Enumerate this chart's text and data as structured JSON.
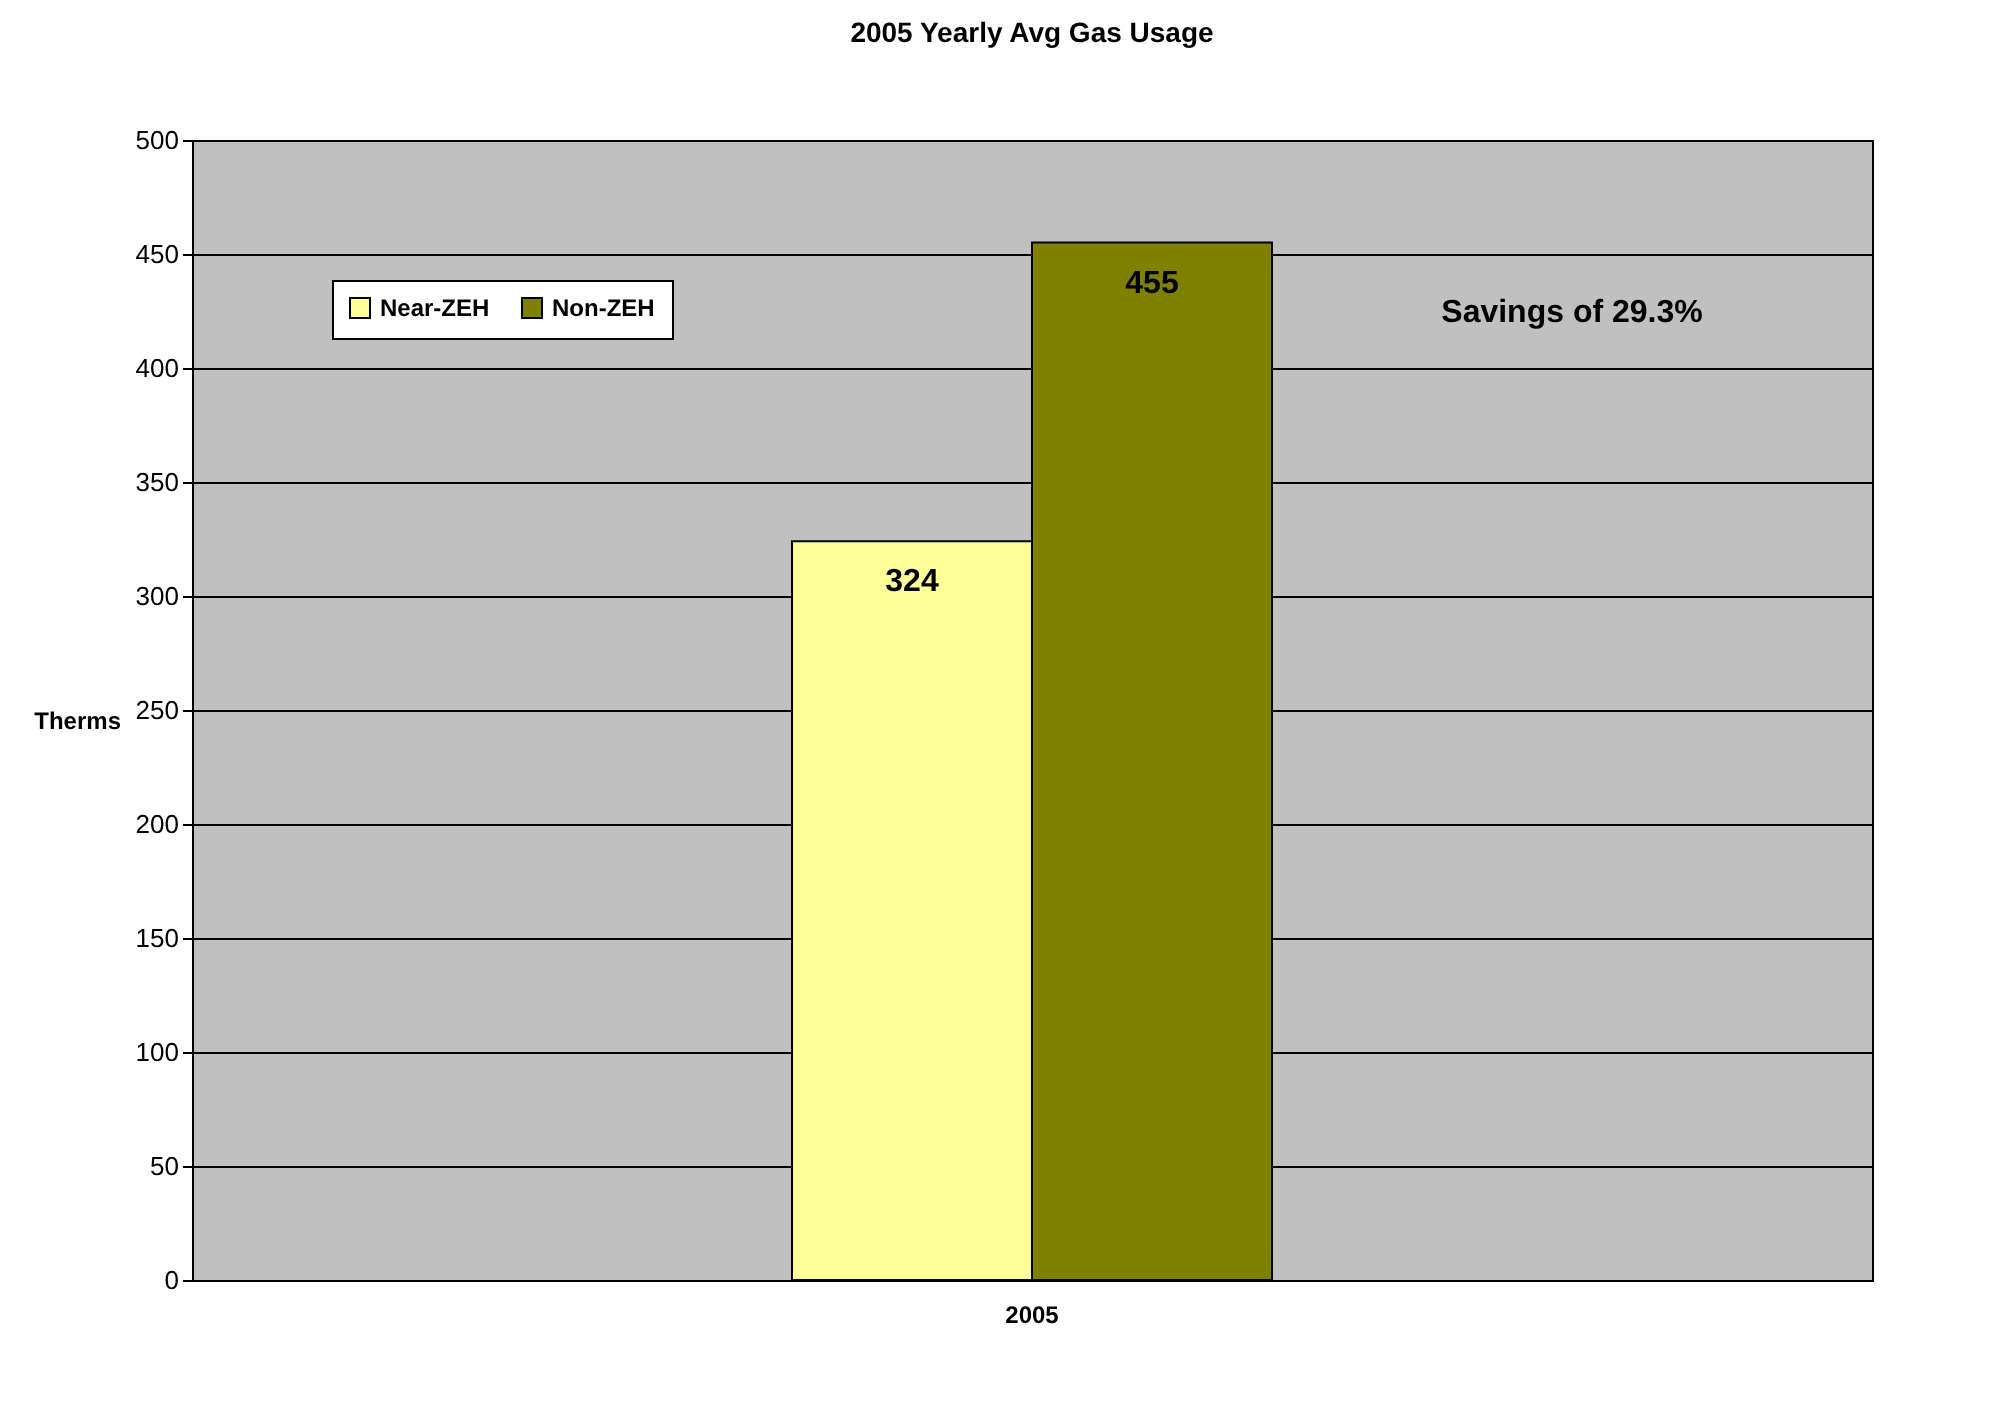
{
  "chart_data": {
    "type": "bar",
    "title": "2005 Yearly Avg Gas Usage",
    "ylabel": "Therms",
    "categories": [
      "2005"
    ],
    "series": [
      {
        "name": "Near-ZEH",
        "color": "#ffff99",
        "values": [
          324
        ]
      },
      {
        "name": "Non-ZEH",
        "color": "#808000",
        "values": [
          455
        ]
      }
    ],
    "ylim": [
      0,
      500
    ],
    "yticks": [
      0,
      50,
      100,
      150,
      200,
      250,
      300,
      350,
      400,
      450,
      500
    ],
    "grid": "y",
    "legend": "top left",
    "data_labels": true,
    "annotations": [
      "Savings of 29.3%"
    ]
  }
}
